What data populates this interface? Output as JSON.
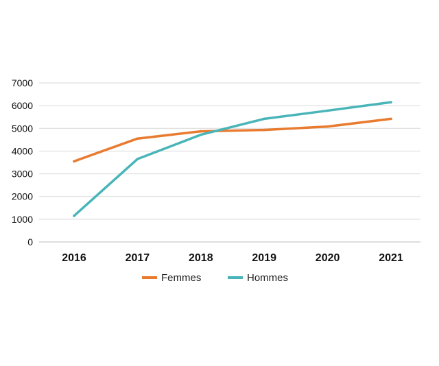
{
  "chart_data": {
    "type": "line",
    "categories": [
      "2016",
      "2017",
      "2018",
      "2019",
      "2020",
      "2021"
    ],
    "series": [
      {
        "name": "Femmes",
        "color": "#E87B2F",
        "values": [
          3550,
          4550,
          4870,
          4930,
          5080,
          5420
        ]
      },
      {
        "name": "Hommes",
        "color": "#49B5B8",
        "values": [
          1150,
          3650,
          4720,
          5420,
          5780,
          6150
        ]
      }
    ],
    "title": "",
    "xlabel": "",
    "ylabel": "",
    "ylim": [
      0,
      7000
    ],
    "yticks": [
      0,
      1000,
      2000,
      3000,
      4000,
      5000,
      6000,
      7000
    ],
    "grid": true,
    "legend_position": "bottom"
  }
}
